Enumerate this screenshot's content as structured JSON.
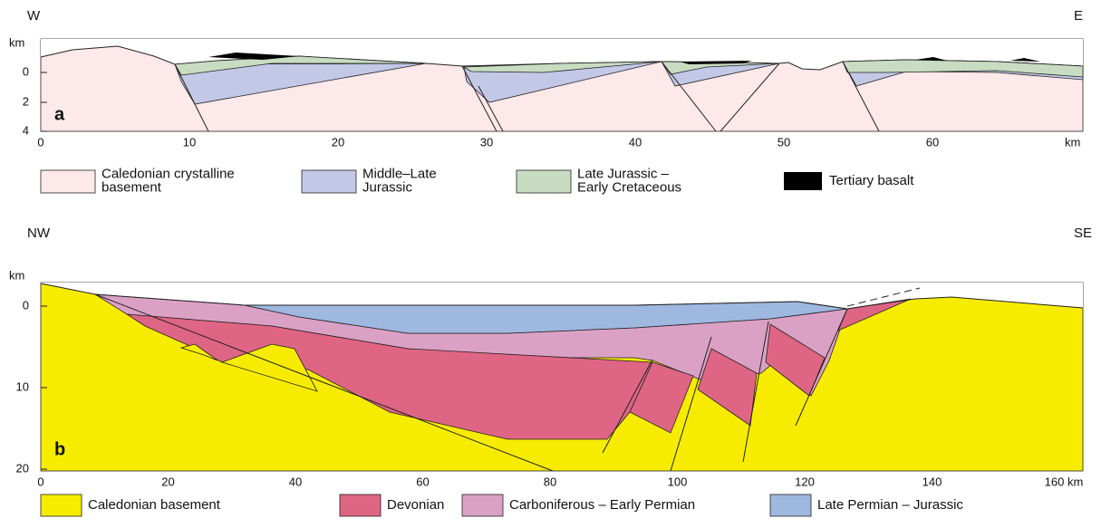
{
  "panel_a": {
    "west": "W",
    "east": "E",
    "depth_unit": "km",
    "depth_ticks": [
      "0",
      "2",
      "4"
    ],
    "distance_ticks": [
      "0",
      "10",
      "20",
      "30",
      "40",
      "50",
      "60"
    ],
    "distance_unit": "km",
    "label": "a",
    "legend": [
      {
        "lines": [
          "Caledonian crystalline",
          "basement"
        ]
      },
      {
        "lines": [
          "Middle–Late",
          "Jurassic"
        ]
      },
      {
        "lines": [
          "Late Jurassic –",
          "Early Cretaceous"
        ]
      },
      {
        "lines": [
          "Tertiary basalt"
        ]
      }
    ]
  },
  "panel_b": {
    "west": "NW",
    "east": "SE",
    "depth_unit": "km",
    "depth_ticks": [
      "0",
      "10",
      "20"
    ],
    "distance_ticks": [
      "0",
      "20",
      "40",
      "60",
      "80",
      "100",
      "120",
      "140",
      "160 km"
    ],
    "label": "b",
    "legend": [
      {
        "lines": [
          "Caledonian basement"
        ]
      },
      {
        "lines": [
          "Devonian"
        ]
      },
      {
        "lines": [
          "Carboniferous – Early Permian"
        ]
      },
      {
        "lines": [
          "Late Permian – Jurassic"
        ]
      }
    ]
  }
}
